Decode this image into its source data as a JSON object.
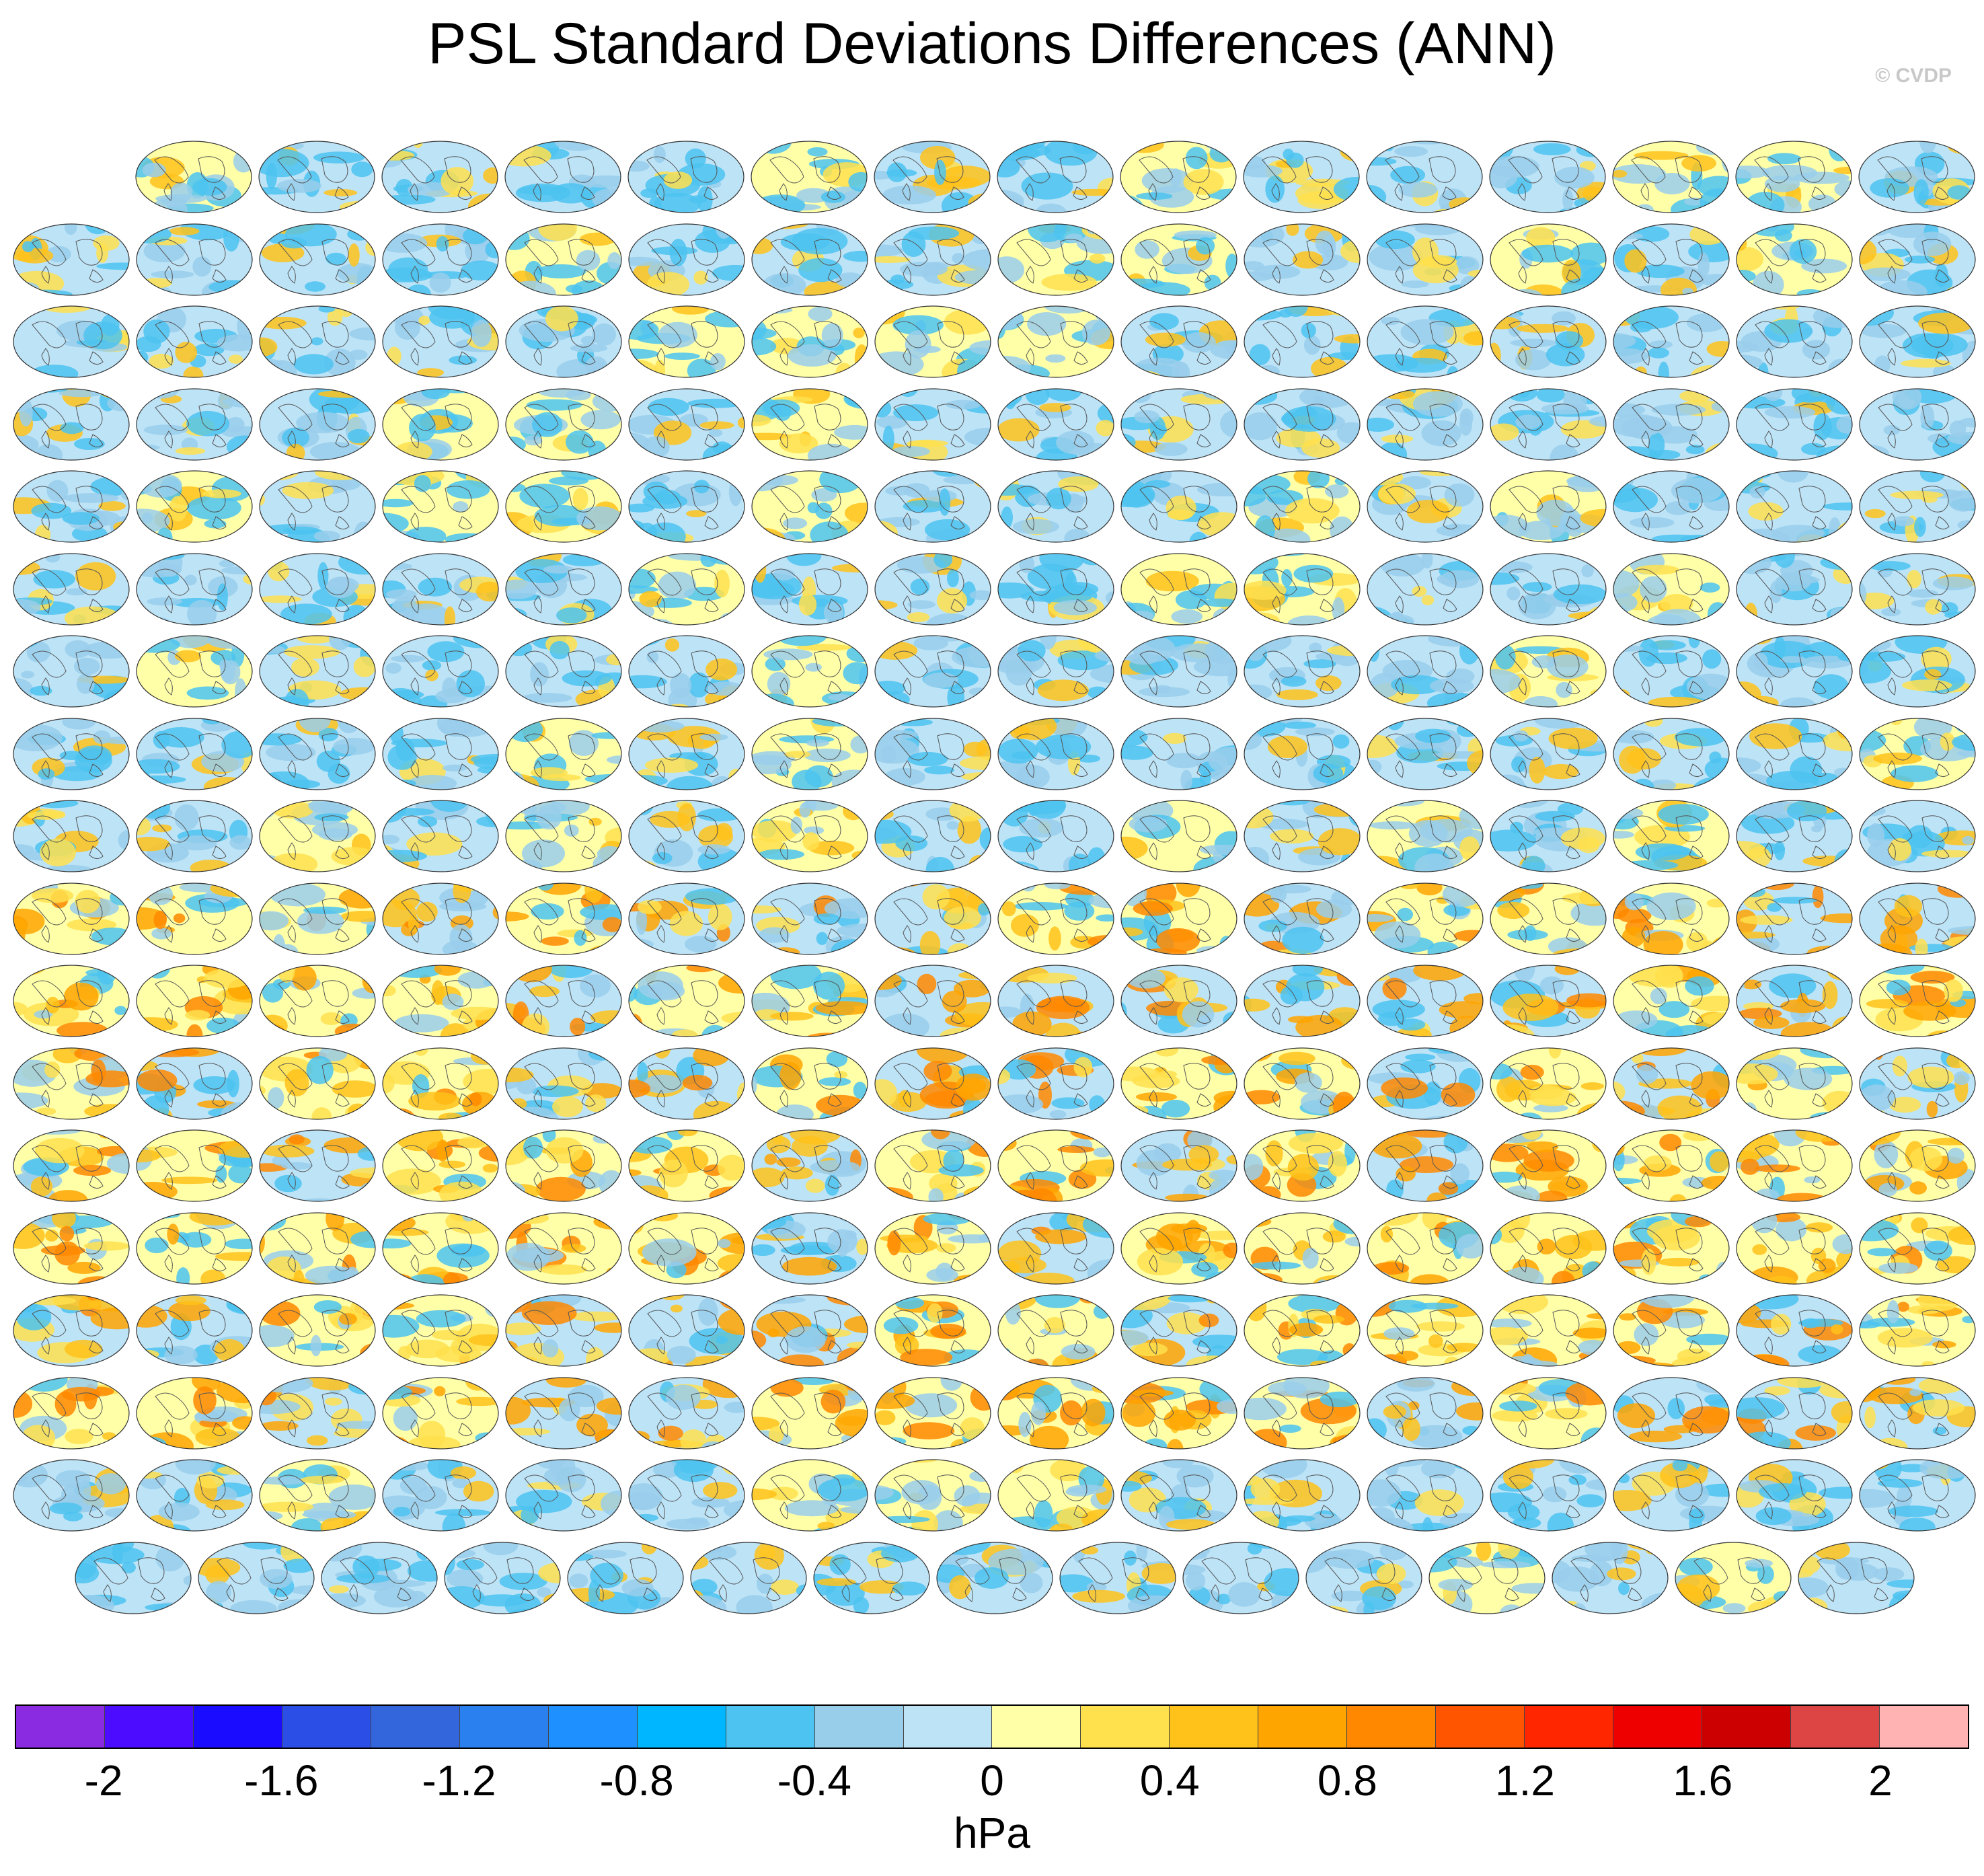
{
  "title": "PSL Standard Deviations Differences (ANN)",
  "credit": "© CVDP",
  "units": "hPa",
  "colorbar": {
    "colors": [
      "#8a2be2",
      "#4b0cff",
      "#1a0cff",
      "#2a4ee6",
      "#3366dd",
      "#2a80ee",
      "#1e90ff",
      "#00b7ff",
      "#4cc3f0",
      "#99ceeb",
      "#bde3f7",
      "#ffffa8",
      "#ffe14d",
      "#ffc21a",
      "#ffa500",
      "#ff8800",
      "#ff5500",
      "#ff2600",
      "#ee0000",
      "#cc0000",
      "#dd4444",
      "#ffb3b3"
    ],
    "tick_labels": [
      "-2",
      "-1.6",
      "-1.2",
      "-0.8",
      "-0.4",
      "0",
      "0.4",
      "0.8",
      "1.2",
      "1.6",
      "2"
    ],
    "tick_values": [
      -2,
      -1.6,
      -1.2,
      -0.8,
      -0.4,
      0,
      0.4,
      0.8,
      1.2,
      1.6,
      2
    ],
    "min": -2.2,
    "max": 2.2
  },
  "label_colors": {
    "access": "#2266aa",
    "canesm": "#66aacc",
    "cesm": "#aa2244",
    "cesm2": "#9966dd",
    "cnrm": "#cccccc",
    "first": "#000000"
  },
  "panel_rows": [
    15,
    16,
    16,
    16,
    16,
    16,
    16,
    16,
    16,
    16,
    16,
    16,
    16,
    16,
    16,
    16,
    16,
    15
  ],
  "panels": []
}
